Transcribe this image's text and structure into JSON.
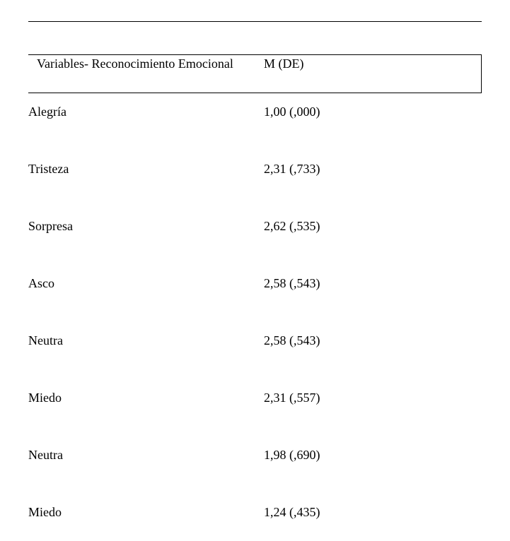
{
  "table": {
    "header": {
      "variables_label": "Variables- Reconocimiento Emocional",
      "stats_label": "M (DE)"
    },
    "rows": [
      {
        "name": "Alegría",
        "value": "1,00 (,000)"
      },
      {
        "name": "Tristeza",
        "value": "2,31 (,733)"
      },
      {
        "name": "Sorpresa",
        "value": "2,62 (,535)"
      },
      {
        "name": "Asco",
        "value": "2,58 (,543)"
      },
      {
        "name": "Neutra",
        "value": "2,58 (,543)"
      },
      {
        "name": "Miedo",
        "value": "2,31 (,557)"
      },
      {
        "name": "Neutra",
        "value": "1,98 (,690)"
      },
      {
        "name": "Miedo",
        "value": "1,24 (,435)"
      }
    ]
  },
  "colors": {
    "text": "#000000",
    "background": "#ffffff",
    "rule": "#000000"
  },
  "typography": {
    "font_family": "Times New Roman",
    "font_size_pt": 13
  }
}
